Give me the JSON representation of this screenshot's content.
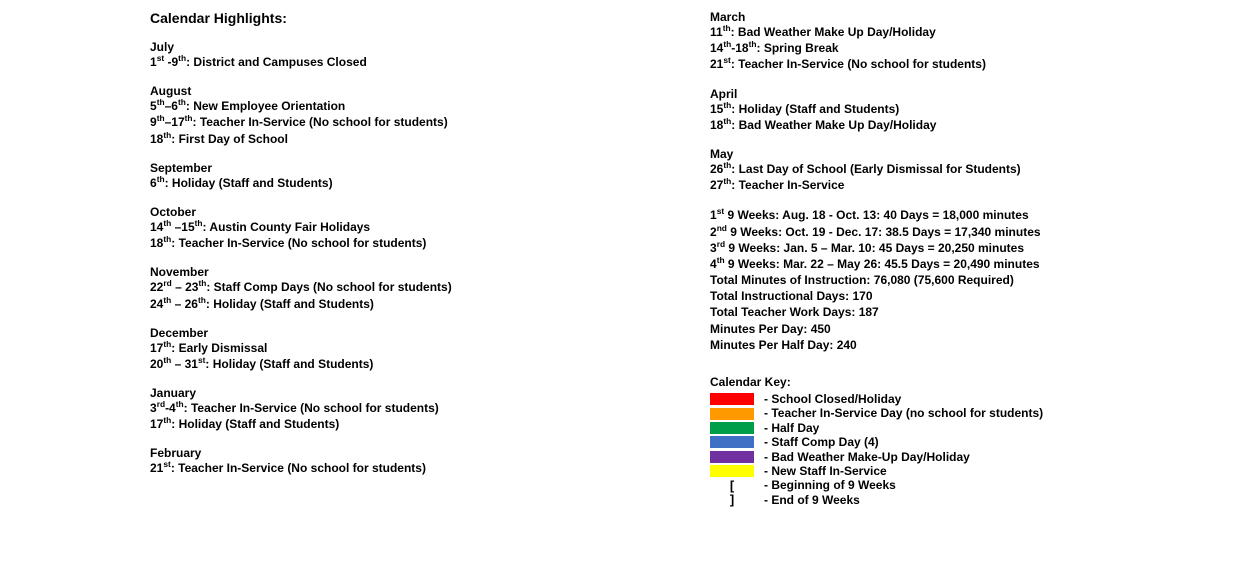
{
  "heading": "Calendar Highlights:",
  "left_months": [
    {
      "name": "July",
      "entries": [
        {
          "date_html": "1<sup>st</sup> -9<sup>th</sup>:",
          "desc": "District and Campuses Closed"
        }
      ]
    },
    {
      "name": "August",
      "entries": [
        {
          "date_html": "5<sup>th</sup>–6<sup>th</sup>:",
          "desc": "New Employee Orientation"
        },
        {
          "date_html": "9<sup>th</sup>–17<sup>th</sup>:",
          "desc": "Teacher In-Service (No school for students)"
        },
        {
          "date_html": "18<sup>th</sup>:",
          "desc": "First Day of School"
        }
      ]
    },
    {
      "name": "September",
      "entries": [
        {
          "date_html": "6<sup>th</sup>:",
          "desc": "Holiday (Staff and Students)"
        }
      ]
    },
    {
      "name": "October",
      "entries": [
        {
          "date_html": "14<sup>th</sup> –15<sup>th</sup>:",
          "desc": "Austin County Fair Holidays"
        },
        {
          "date_html": "18<sup>th</sup>:",
          "desc": "Teacher In-Service (No school for students)"
        }
      ]
    },
    {
      "name": "November",
      "entries": [
        {
          "date_html": "22<sup>rd</sup> – 23<sup>th</sup>:",
          "desc": "Staff Comp Days (No school for students)"
        },
        {
          "date_html": "24<sup>th</sup> – 26<sup>th</sup>:",
          "desc": "Holiday (Staff and Students)"
        }
      ]
    },
    {
      "name": "December",
      "entries": [
        {
          "date_html": "17<sup>th</sup>:",
          "desc": "Early Dismissal"
        },
        {
          "date_html": "20<sup>th</sup> – 31<sup>st</sup>:",
          "desc": "Holiday (Staff and Students)"
        }
      ]
    },
    {
      "name": "January",
      "entries": [
        {
          "date_html": "3<sup>rd</sup>-4<sup>th</sup>:",
          "desc": "Teacher In-Service (No school for students)"
        },
        {
          "date_html": "17<sup>th</sup>:",
          "desc": "Holiday (Staff and Students)"
        }
      ]
    },
    {
      "name": "February",
      "entries": [
        {
          "date_html": "21<sup>st</sup>:",
          "desc": "Teacher In-Service (No school for students)"
        }
      ]
    }
  ],
  "right_months": [
    {
      "name": "March",
      "entries": [
        {
          "date_html": "11<sup>th</sup>:",
          "desc": "Bad Weather Make Up Day/Holiday"
        },
        {
          "date_html": "14<sup>th</sup>-18<sup>th</sup>:",
          "desc": "Spring Break"
        },
        {
          "date_html": "21<sup>st</sup>:",
          "desc": "Teacher In-Service (No school for students)"
        }
      ]
    },
    {
      "name": "April",
      "entries": [
        {
          "date_html": "15<sup>th</sup>:",
          "desc": "Holiday (Staff and Students)"
        },
        {
          "date_html": "18<sup>th</sup>:",
          "desc": "Bad Weather Make Up Day/Holiday"
        }
      ]
    },
    {
      "name": "May",
      "entries": [
        {
          "date_html": "26<sup>th</sup>:",
          "desc": "Last Day of School (Early Dismissal for Students)"
        },
        {
          "date_html": "27<sup>th</sup>:",
          "desc": "Teacher In-Service"
        }
      ]
    }
  ],
  "weeks": [
    {
      "html": "1<sup>st</sup> 9 Weeks:  Aug. 18 - Oct. 13:  40 Days = 18,000 minutes"
    },
    {
      "html": "2<sup>nd</sup> 9 Weeks:  Oct. 19 - Dec. 17:  38.5 Days = 17,340 minutes"
    },
    {
      "html": "3<sup>rd</sup> 9 Weeks:  Jan. 5 – Mar. 10:  45 Days = 20,250 minutes"
    },
    {
      "html": "4<sup>th</sup> 9 Weeks:  Mar. 22 – May 26:  45.5 Days = 20,490 minutes"
    },
    {
      "html": "Total Minutes of Instruction:  76,080 (75,600 Required)"
    },
    {
      "html": "Total Instructional Days:  170"
    },
    {
      "html": "Total Teacher Work Days:  187"
    },
    {
      "html": "Minutes Per Day:  450"
    },
    {
      "html": "Minutes Per Half Day:  240"
    }
  ],
  "key_title": "Calendar Key:",
  "key": [
    {
      "type": "swatch",
      "color": "#ff0000",
      "label": "- School Closed/Holiday"
    },
    {
      "type": "swatch",
      "color": "#ff9900",
      "label": "- Teacher In-Service Day (no school for students)"
    },
    {
      "type": "swatch",
      "color": "#009e49",
      "label": "- Half Day"
    },
    {
      "type": "swatch",
      "color": "#3f70c6",
      "label": "- Staff Comp Day (4)"
    },
    {
      "type": "swatch",
      "color": "#7030a0",
      "label": "- Bad Weather Make-Up Day/Holiday"
    },
    {
      "type": "swatch",
      "color": "#ffff00",
      "label": "- New Staff In-Service"
    },
    {
      "type": "bracket",
      "symbol": "[",
      "label": "- Beginning of 9 Weeks"
    },
    {
      "type": "bracket",
      "symbol": "]",
      "label": "- End of 9 Weeks"
    }
  ]
}
